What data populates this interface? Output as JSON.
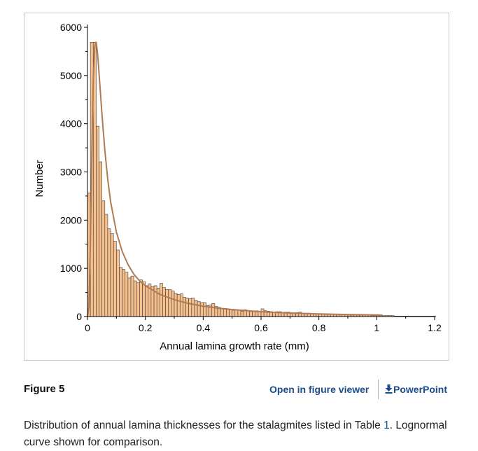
{
  "figure": {
    "label": "Figure 5",
    "open_viewer_label": "Open in figure viewer",
    "powerpoint_label": "PowerPoint",
    "download_icon": "download-arrow-icon",
    "caption_before": "Distribution of annual lamina thicknesses for the stalagmites listed in Table ",
    "caption_ref": "1",
    "caption_after": ". Lognormal curve shown for comparison.",
    "link_color": "#1a4d8c"
  },
  "chart_data": {
    "type": "bar",
    "xlabel": "Annual lamina growth rate (mm)",
    "ylabel": "Number",
    "xlim": [
      0,
      1.2
    ],
    "ylim": [
      0,
      6000
    ],
    "xticks": [
      "0",
      "0.2",
      "0.4",
      "0.6",
      "0.8",
      "1",
      "1.2"
    ],
    "xtick_values": [
      0,
      0.2,
      0.4,
      0.6,
      0.8,
      1,
      1.2
    ],
    "yticks": [
      "0",
      "1000",
      "2000",
      "3000",
      "4000",
      "5000",
      "6000"
    ],
    "ytick_values": [
      0,
      1000,
      2000,
      3000,
      4000,
      5000,
      6000
    ],
    "bin_width": 0.01,
    "bin_start": 0,
    "bin_values": [
      2560,
      5690,
      5690,
      3950,
      3210,
      2400,
      2120,
      1820,
      1720,
      1560,
      1380,
      1020,
      980,
      920,
      800,
      840,
      740,
      700,
      760,
      720,
      640,
      680,
      620,
      640,
      590,
      690,
      600,
      560,
      560,
      530,
      480,
      460,
      470,
      400,
      380,
      370,
      380,
      330,
      310,
      290,
      290,
      230,
      240,
      270,
      210,
      190,
      170,
      170,
      150,
      140,
      130,
      140,
      130,
      110,
      140,
      120,
      110,
      110,
      120,
      100,
      160,
      120,
      110,
      100,
      90,
      100,
      100,
      90,
      90,
      90,
      80,
      70,
      80,
      90,
      70,
      60,
      70,
      60,
      60,
      60,
      60,
      60,
      50,
      50,
      50,
      50,
      40,
      40,
      40,
      40,
      40,
      30,
      40,
      30,
      30,
      30,
      30,
      30,
      20,
      20,
      20,
      20,
      20,
      20,
      20,
      20,
      10,
      10,
      10,
      10,
      10,
      10,
      10,
      10,
      10,
      10,
      10,
      10,
      10,
      10
    ],
    "curve": {
      "name": "Lognormal",
      "x": [
        0.0,
        0.005,
        0.01,
        0.015,
        0.02,
        0.025,
        0.03,
        0.035,
        0.04,
        0.05,
        0.06,
        0.07,
        0.08,
        0.1,
        0.12,
        0.14,
        0.16,
        0.18,
        0.2,
        0.25,
        0.3,
        0.35,
        0.4,
        0.45,
        0.5,
        0.6,
        0.7,
        0.8,
        0.9,
        1.0,
        1.02
      ],
      "y": [
        0,
        200,
        1500,
        3400,
        4900,
        5600,
        5700,
        5450,
        5050,
        4200,
        3450,
        2850,
        2380,
        1750,
        1350,
        1080,
        880,
        740,
        640,
        460,
        350,
        270,
        215,
        175,
        145,
        100,
        72,
        55,
        42,
        32,
        30
      ]
    },
    "bar_fill": "#f8c08c",
    "bar_stroke": "#3a3a3a",
    "curve_color": "#b07a55",
    "grid": false
  }
}
